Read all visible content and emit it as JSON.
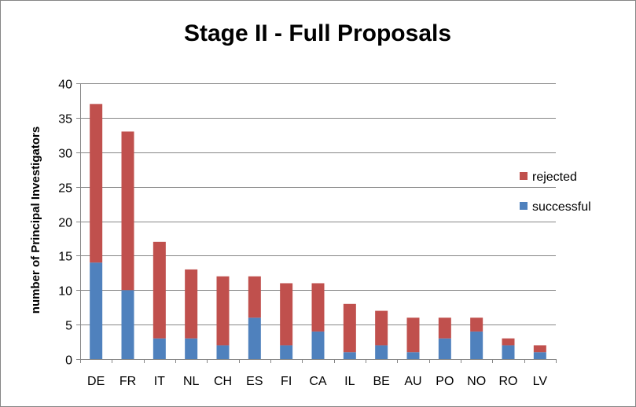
{
  "chart_data": {
    "type": "bar",
    "stacked": true,
    "title": "Stage II - Full Proposals",
    "xlabel": "",
    "ylabel": "number of Principal Investigators",
    "ylim": [
      0,
      40
    ],
    "yticks": [
      0,
      5,
      10,
      15,
      20,
      25,
      30,
      35,
      40
    ],
    "grid": true,
    "legend_position": "right",
    "categories": [
      "DE",
      "FR",
      "IT",
      "NL",
      "CH",
      "ES",
      "FI",
      "CA",
      "IL",
      "BE",
      "AU",
      "PO",
      "NO",
      "RO",
      "LV"
    ],
    "series": [
      {
        "name": "successful",
        "color": "#4f81bd",
        "values": [
          14,
          10,
          3,
          3,
          2,
          6,
          2,
          4,
          1,
          2,
          1,
          3,
          4,
          2,
          1
        ]
      },
      {
        "name": "rejected",
        "color": "#c0504d",
        "values": [
          23,
          23,
          14,
          10,
          10,
          6,
          9,
          7,
          7,
          5,
          5,
          3,
          2,
          1,
          1
        ]
      }
    ]
  }
}
